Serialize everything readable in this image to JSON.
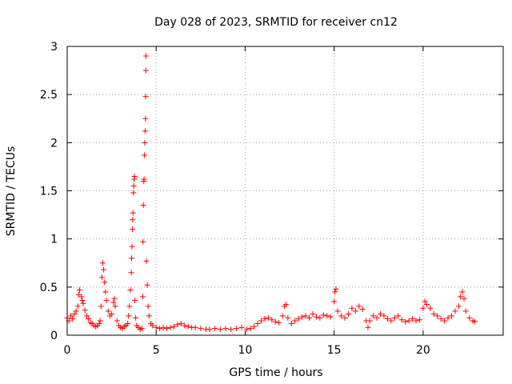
{
  "chart_data": {
    "type": "scatter",
    "title": "Day 028 of 2023, SRMTID for receiver cn12",
    "xlabel": "GPS time / hours",
    "ylabel": "SRMTID / TECUs",
    "xlim": [
      0,
      24.5
    ],
    "ylim": [
      0,
      3
    ],
    "x_ticks": [
      0,
      5,
      10,
      15,
      20
    ],
    "y_ticks": [
      0,
      0.5,
      1,
      1.5,
      2,
      2.5,
      3
    ],
    "x_tick_labels": [
      "0",
      "5",
      "10",
      "15",
      "20"
    ],
    "y_tick_labels": [
      "0",
      "0.5",
      "1",
      "1.5",
      "2",
      "2.5",
      "3"
    ],
    "grid": true,
    "marker": "+",
    "series": [
      {
        "name": "cn12",
        "color": "#ff0000",
        "points": [
          [
            0.0,
            0.18
          ],
          [
            0.1,
            0.15
          ],
          [
            0.2,
            0.2
          ],
          [
            0.3,
            0.17
          ],
          [
            0.4,
            0.22
          ],
          [
            0.5,
            0.25
          ],
          [
            0.6,
            0.3
          ],
          [
            0.65,
            0.42
          ],
          [
            0.7,
            0.47
          ],
          [
            0.8,
            0.4
          ],
          [
            0.85,
            0.36
          ],
          [
            0.9,
            0.33
          ],
          [
            1.0,
            0.26
          ],
          [
            1.1,
            0.2
          ],
          [
            1.2,
            0.17
          ],
          [
            1.3,
            0.13
          ],
          [
            1.4,
            0.12
          ],
          [
            1.5,
            0.1
          ],
          [
            1.6,
            0.09
          ],
          [
            1.7,
            0.1
          ],
          [
            1.8,
            0.12
          ],
          [
            1.85,
            0.15
          ],
          [
            1.9,
            0.3
          ],
          [
            1.95,
            0.6
          ],
          [
            2.0,
            0.75
          ],
          [
            2.05,
            0.68
          ],
          [
            2.1,
            0.55
          ],
          [
            2.15,
            0.45
          ],
          [
            2.2,
            0.36
          ],
          [
            2.3,
            0.25
          ],
          [
            2.4,
            0.2
          ],
          [
            2.5,
            0.22
          ],
          [
            2.6,
            0.34
          ],
          [
            2.65,
            0.38
          ],
          [
            2.7,
            0.3
          ],
          [
            2.8,
            0.15
          ],
          [
            2.9,
            0.1
          ],
          [
            3.0,
            0.08
          ],
          [
            3.1,
            0.07
          ],
          [
            3.2,
            0.09
          ],
          [
            3.3,
            0.1
          ],
          [
            3.4,
            0.12
          ],
          [
            3.45,
            0.2
          ],
          [
            3.5,
            0.3
          ],
          [
            3.55,
            0.47
          ],
          [
            3.6,
            0.65
          ],
          [
            3.62,
            0.8
          ],
          [
            3.64,
            0.92
          ],
          [
            3.66,
            1.1
          ],
          [
            3.68,
            1.2
          ],
          [
            3.7,
            1.27
          ],
          [
            3.72,
            1.48
          ],
          [
            3.74,
            1.55
          ],
          [
            3.76,
            1.62
          ],
          [
            3.78,
            1.65
          ],
          [
            3.8,
            0.36
          ],
          [
            3.85,
            0.18
          ],
          [
            3.9,
            0.1
          ],
          [
            4.0,
            0.08
          ],
          [
            4.1,
            0.06
          ],
          [
            4.2,
            0.07
          ],
          [
            4.25,
            0.4
          ],
          [
            4.26,
            0.97
          ],
          [
            4.28,
            1.35
          ],
          [
            4.3,
            1.6
          ],
          [
            4.32,
            1.62
          ],
          [
            4.34,
            1.87
          ],
          [
            4.36,
            2.0
          ],
          [
            4.38,
            2.12
          ],
          [
            4.4,
            2.25
          ],
          [
            4.41,
            2.48
          ],
          [
            4.42,
            2.75
          ],
          [
            4.43,
            2.9
          ],
          [
            4.45,
            0.77
          ],
          [
            4.5,
            0.52
          ],
          [
            4.55,
            0.3
          ],
          [
            4.6,
            0.2
          ],
          [
            4.7,
            0.12
          ],
          [
            4.8,
            0.1
          ],
          [
            5.0,
            0.08
          ],
          [
            5.2,
            0.07
          ],
          [
            5.4,
            0.08
          ],
          [
            5.6,
            0.07
          ],
          [
            5.8,
            0.08
          ],
          [
            6.0,
            0.09
          ],
          [
            6.2,
            0.11
          ],
          [
            6.4,
            0.12
          ],
          [
            6.6,
            0.1
          ],
          [
            6.8,
            0.09
          ],
          [
            7.0,
            0.08
          ],
          [
            7.2,
            0.08
          ],
          [
            7.5,
            0.07
          ],
          [
            7.8,
            0.06
          ],
          [
            8.0,
            0.06
          ],
          [
            8.3,
            0.07
          ],
          [
            8.6,
            0.06
          ],
          [
            8.9,
            0.07
          ],
          [
            9.2,
            0.06
          ],
          [
            9.5,
            0.07
          ],
          [
            9.8,
            0.08
          ],
          [
            10.1,
            0.06
          ],
          [
            10.3,
            0.07
          ],
          [
            10.5,
            0.09
          ],
          [
            10.7,
            0.12
          ],
          [
            10.9,
            0.15
          ],
          [
            11.1,
            0.17
          ],
          [
            11.3,
            0.18
          ],
          [
            11.5,
            0.16
          ],
          [
            11.7,
            0.14
          ],
          [
            11.9,
            0.13
          ],
          [
            12.1,
            0.2
          ],
          [
            12.2,
            0.3
          ],
          [
            12.3,
            0.32
          ],
          [
            12.4,
            0.18
          ],
          [
            12.6,
            0.12
          ],
          [
            12.8,
            0.15
          ],
          [
            13.0,
            0.17
          ],
          [
            13.2,
            0.19
          ],
          [
            13.4,
            0.2
          ],
          [
            13.6,
            0.18
          ],
          [
            13.8,
            0.22
          ],
          [
            14.0,
            0.19
          ],
          [
            14.2,
            0.18
          ],
          [
            14.4,
            0.21
          ],
          [
            14.6,
            0.2
          ],
          [
            14.8,
            0.19
          ],
          [
            15.0,
            0.35
          ],
          [
            15.05,
            0.45
          ],
          [
            15.1,
            0.48
          ],
          [
            15.2,
            0.25
          ],
          [
            15.4,
            0.2
          ],
          [
            15.6,
            0.18
          ],
          [
            15.8,
            0.22
          ],
          [
            16.0,
            0.28
          ],
          [
            16.2,
            0.25
          ],
          [
            16.4,
            0.3
          ],
          [
            16.6,
            0.27
          ],
          [
            16.8,
            0.15
          ],
          [
            16.9,
            0.08
          ],
          [
            17.0,
            0.15
          ],
          [
            17.2,
            0.2
          ],
          [
            17.4,
            0.18
          ],
          [
            17.6,
            0.22
          ],
          [
            17.8,
            0.2
          ],
          [
            18.0,
            0.17
          ],
          [
            18.2,
            0.15
          ],
          [
            18.4,
            0.18
          ],
          [
            18.6,
            0.2
          ],
          [
            18.8,
            0.16
          ],
          [
            19.0,
            0.14
          ],
          [
            19.2,
            0.15
          ],
          [
            19.4,
            0.17
          ],
          [
            19.6,
            0.15
          ],
          [
            19.8,
            0.16
          ],
          [
            20.0,
            0.28
          ],
          [
            20.1,
            0.35
          ],
          [
            20.2,
            0.32
          ],
          [
            20.4,
            0.28
          ],
          [
            20.6,
            0.22
          ],
          [
            20.8,
            0.2
          ],
          [
            21.0,
            0.17
          ],
          [
            21.2,
            0.15
          ],
          [
            21.4,
            0.18
          ],
          [
            21.6,
            0.2
          ],
          [
            21.8,
            0.25
          ],
          [
            22.0,
            0.3
          ],
          [
            22.1,
            0.4
          ],
          [
            22.2,
            0.45
          ],
          [
            22.3,
            0.38
          ],
          [
            22.4,
            0.25
          ],
          [
            22.6,
            0.18
          ],
          [
            22.8,
            0.15
          ],
          [
            22.9,
            0.14
          ]
        ]
      }
    ]
  }
}
